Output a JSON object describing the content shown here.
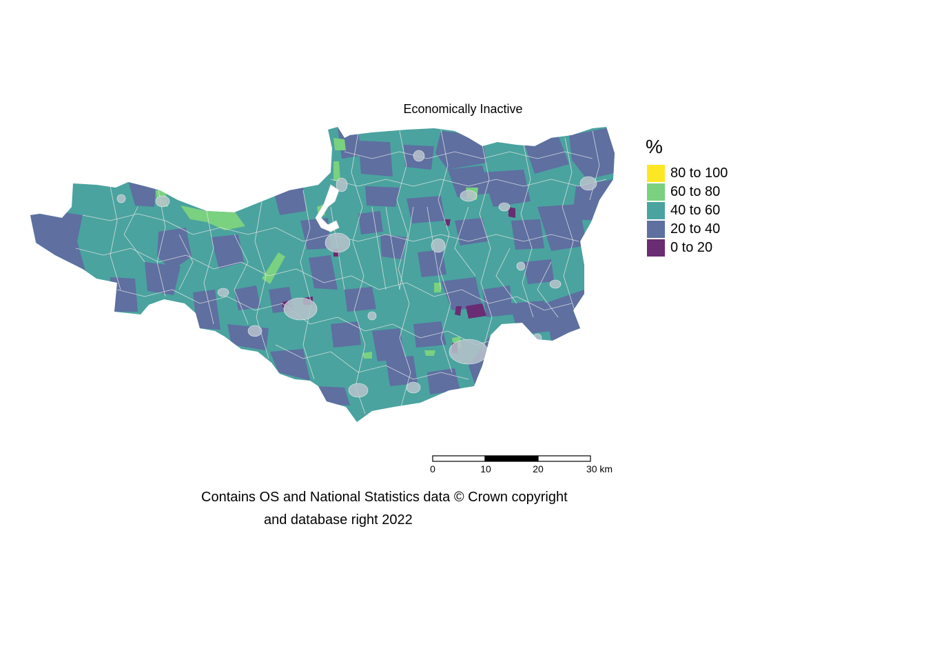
{
  "map": {
    "title": "Economically Inactive",
    "legend": {
      "title": "%",
      "classes": [
        {
          "label": "80 to 100",
          "color": "#FDE725"
        },
        {
          "label": "60 to 80",
          "color": "#7AD17F"
        },
        {
          "label": "40 to 60",
          "color": "#4AA39F"
        },
        {
          "label": "20 to 40",
          "color": "#5E6FA0"
        },
        {
          "label": "0 to 20",
          "color": "#6A2C72"
        }
      ]
    },
    "scale_bar": {
      "ticks": [
        "0",
        "10",
        "20",
        "30 km"
      ]
    },
    "caption": {
      "line1": "Contains OS and National Statistics data © Crown copyright",
      "line2": "and database right 2022"
    },
    "colors": {
      "boundary": "#e6e6e6",
      "estuary": "#ffffff"
    }
  }
}
